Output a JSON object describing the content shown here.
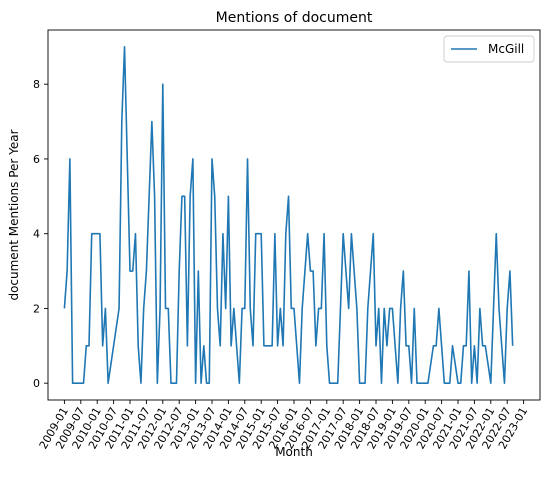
{
  "chart_data": {
    "type": "line",
    "title": "Mentions of document",
    "xlabel": "Month",
    "ylabel": "document Mentions Per Year",
    "legend_position": "top-right",
    "grid": false,
    "line_color": "#1f77b4",
    "x_start": "2009-01",
    "xlim": [
      "2008-07",
      "2023-07"
    ],
    "ylim": [
      -0.45,
      9.45
    ],
    "y_ticks": [
      0,
      2,
      4,
      6,
      8
    ],
    "x_tick_labels": [
      "2009-01",
      "2009-07",
      "2010-01",
      "2010-07",
      "2011-01",
      "2011-07",
      "2012-01",
      "2012-07",
      "2013-01",
      "2013-07",
      "2014-01",
      "2014-07",
      "2015-01",
      "2015-07",
      "2016-01",
      "2016-07",
      "2017-01",
      "2017-07",
      "2018-01",
      "2018-07",
      "2019-01",
      "2019-07",
      "2020-01",
      "2020-07",
      "2021-01",
      "2021-07",
      "2022-01",
      "2022-07",
      "2023-01"
    ],
    "series": [
      {
        "name": "McGill",
        "values": [
          2,
          3,
          6,
          0,
          0,
          0,
          0,
          0,
          1,
          1,
          4,
          4,
          4,
          4,
          1,
          2,
          0,
          0.5,
          1,
          1.5,
          2,
          7,
          9,
          6,
          3,
          3,
          4,
          1,
          0,
          2,
          3,
          5,
          7,
          5,
          0,
          2,
          8,
          2,
          2,
          0,
          0,
          0,
          3,
          5,
          5,
          1,
          5,
          6,
          0,
          3,
          0,
          1,
          0,
          0,
          6,
          5,
          2,
          1,
          4,
          2,
          5,
          1,
          2,
          1,
          0,
          2,
          2,
          6,
          2,
          1,
          4,
          4,
          4,
          1,
          1,
          1,
          1,
          4,
          1,
          2,
          1,
          4,
          5,
          2,
          2,
          1,
          0,
          2,
          3,
          4,
          3,
          3,
          1,
          2,
          2,
          4,
          1,
          0,
          0,
          0,
          0,
          2,
          4,
          3,
          2,
          4,
          3,
          2,
          0,
          0,
          0,
          2,
          3,
          4,
          1,
          2,
          0,
          2,
          1,
          2,
          2,
          1,
          0,
          2,
          3,
          1,
          1,
          0,
          2,
          0,
          0,
          0,
          0,
          0,
          0.5,
          1,
          1,
          2,
          1,
          0,
          0,
          0,
          1,
          0.5,
          0,
          0,
          1,
          1,
          3,
          0,
          1,
          0,
          2,
          1,
          1,
          0.5,
          0,
          2,
          4,
          2,
          1,
          0,
          2,
          3,
          1
        ]
      }
    ]
  }
}
